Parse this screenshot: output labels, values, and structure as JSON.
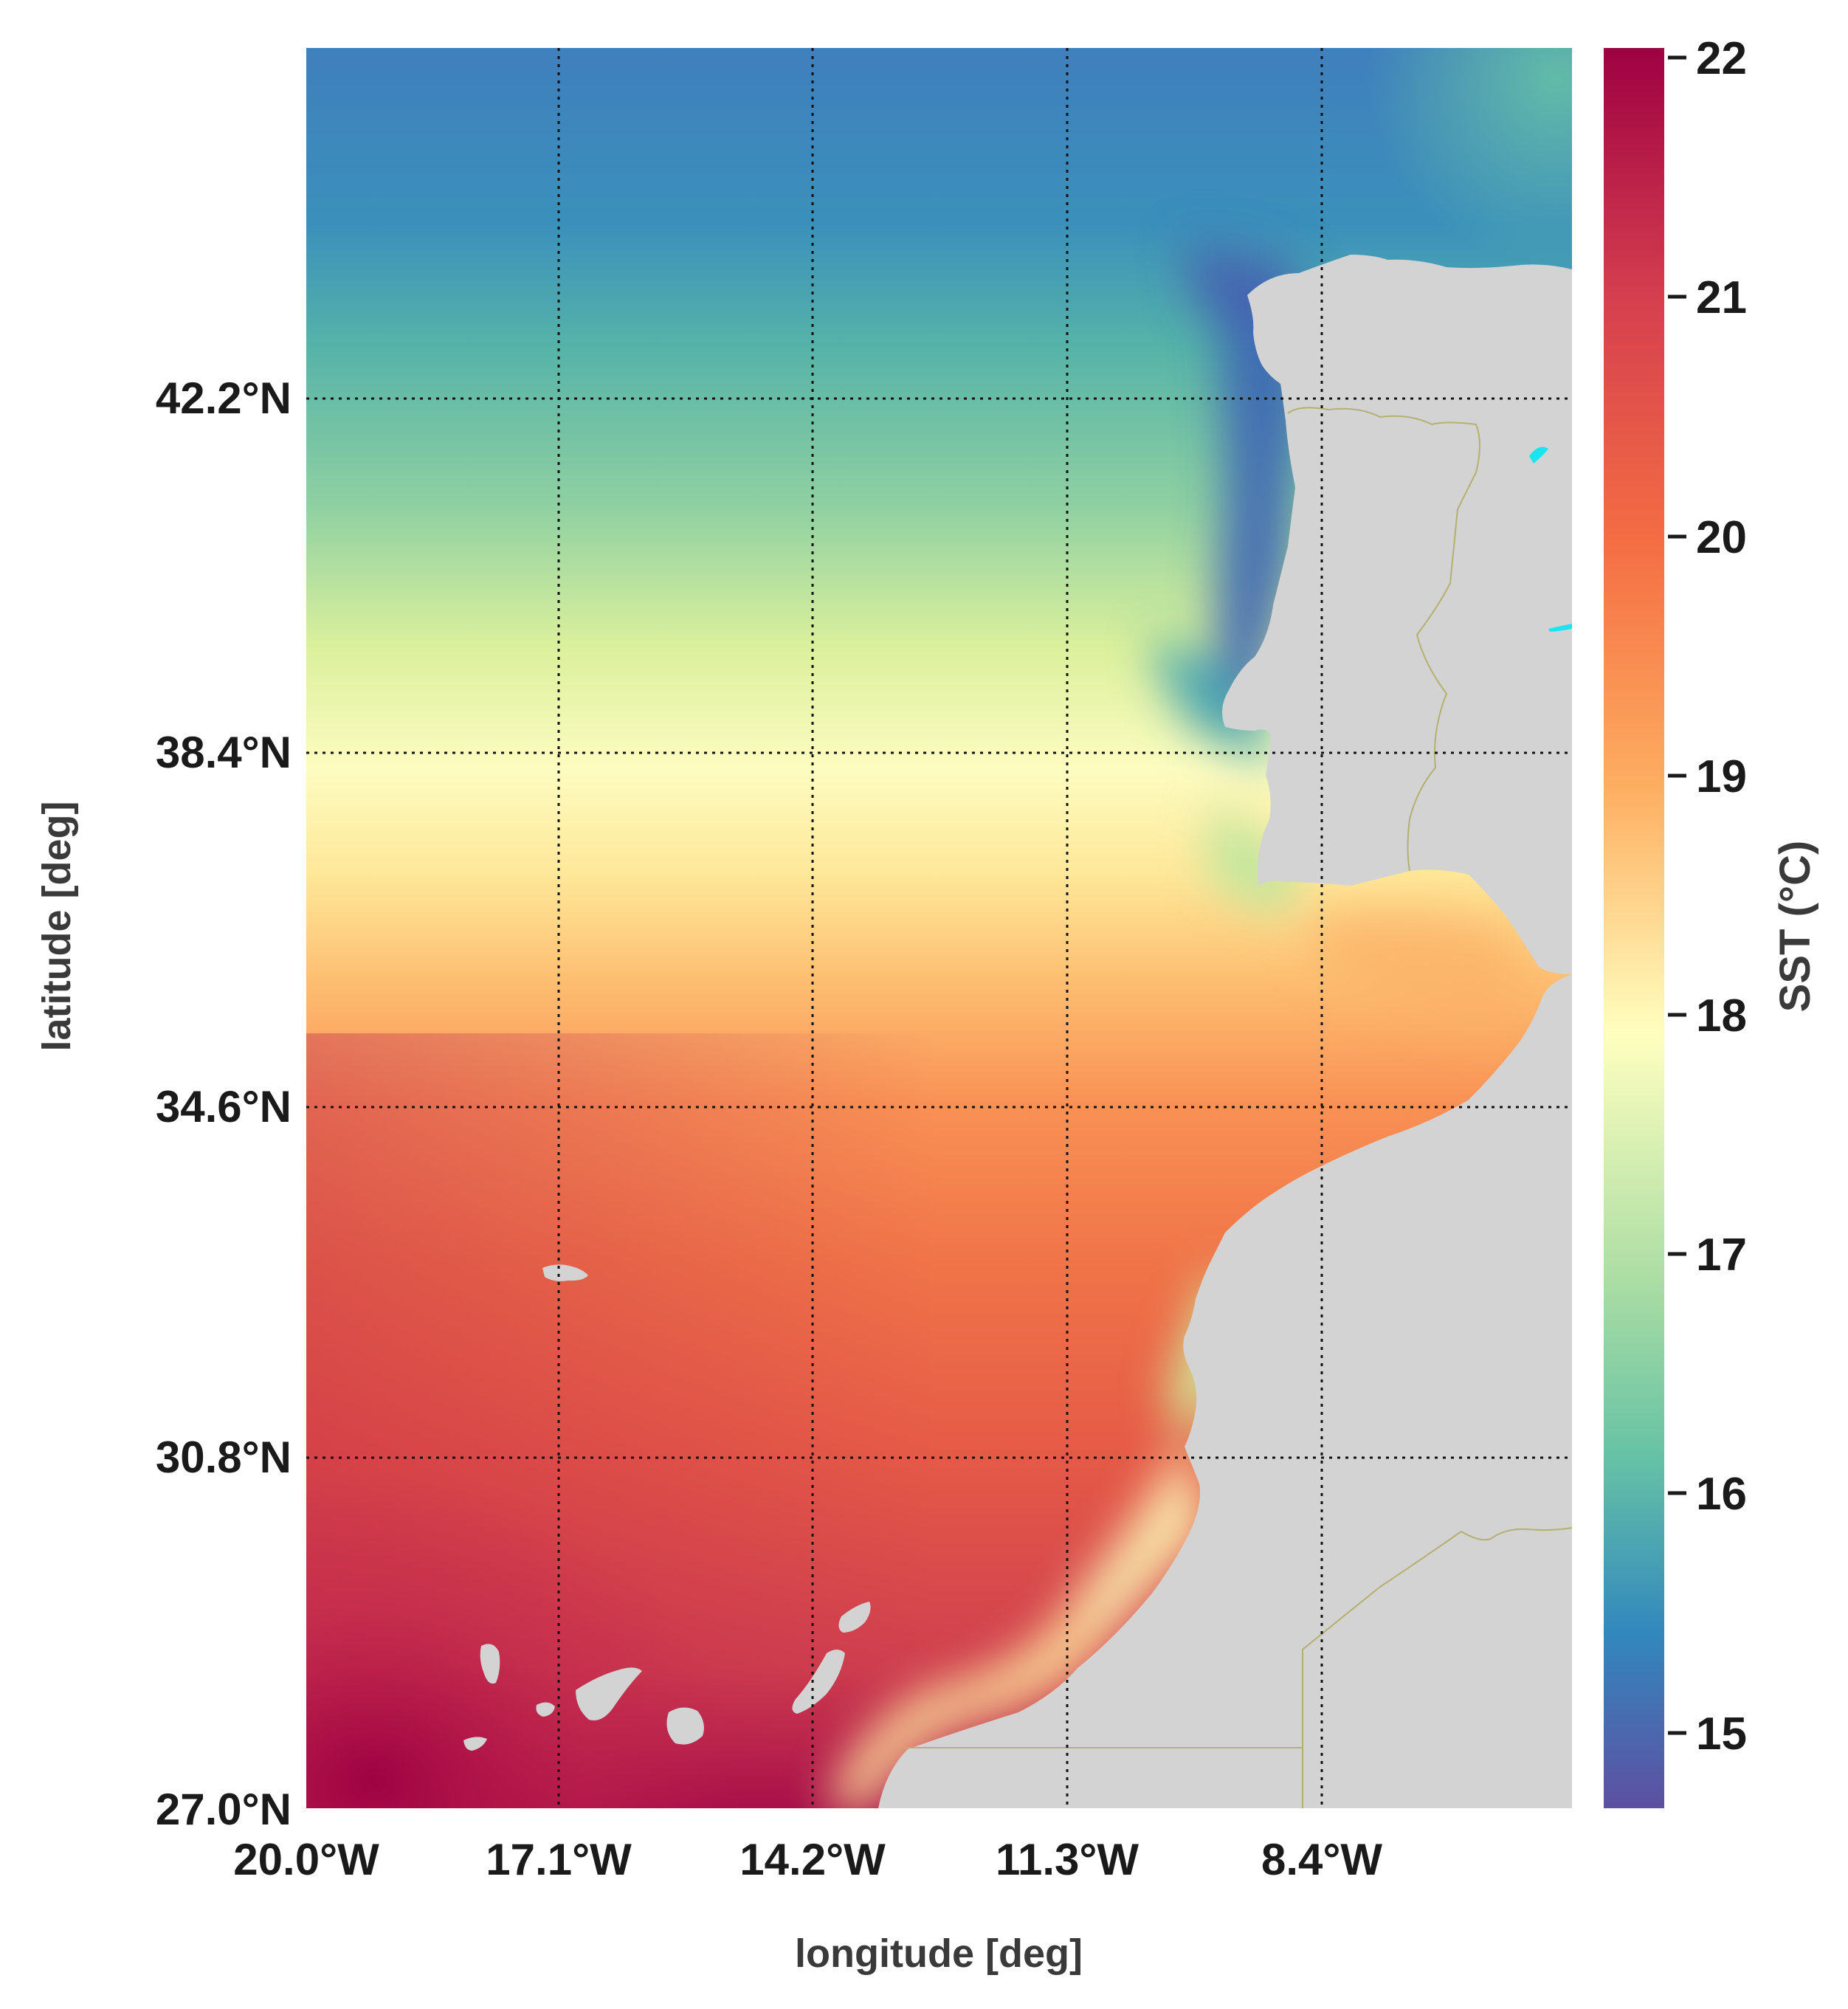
{
  "map": {
    "colorbar_label": "SST (°C)",
    "xlabel": "longitude [deg]",
    "ylabel": "latitude [deg]",
    "lat_ticks": [
      "42.2°N",
      "38.4°N",
      "34.6°N",
      "30.8°N",
      "27.0°N"
    ],
    "lon_ticks": [
      "20.0°W",
      "17.1°W",
      "14.2°W",
      "11.3°W",
      "8.4°W"
    ],
    "colorbar_ticks": [
      "22",
      "21",
      "20",
      "19",
      "18",
      "17",
      "16",
      "15"
    ],
    "colors": {
      "land": "#d3d3d3",
      "border": "#b5b070",
      "grid": "#111111",
      "cold": "#5e4fa2",
      "cool": "#3288bd",
      "mild": "#66c2a5",
      "neutral": "#ffffbf",
      "warm": "#fdae61",
      "hot": "#f46d43",
      "hottest": "#9e0142"
    }
  },
  "chart_data": {
    "type": "heatmap",
    "variable": "SST (°C)",
    "xlabel": "longitude [deg]",
    "ylabel": "latitude [deg]",
    "x_ticks_deg": [
      -20.0,
      -17.1,
      -14.2,
      -11.3,
      -8.4
    ],
    "y_ticks_deg": [
      42.2,
      38.4,
      34.6,
      30.8,
      27.0
    ],
    "xlim_deg": [
      -20.0,
      -5.5
    ],
    "ylim_deg": [
      27.0,
      46.0
    ],
    "colorbar_range": [
      14.7,
      22.0
    ],
    "colorbar_ticks": [
      15,
      16,
      17,
      18,
      19,
      20,
      21,
      22
    ],
    "colormap": "Spectral_r",
    "grid": true
  }
}
